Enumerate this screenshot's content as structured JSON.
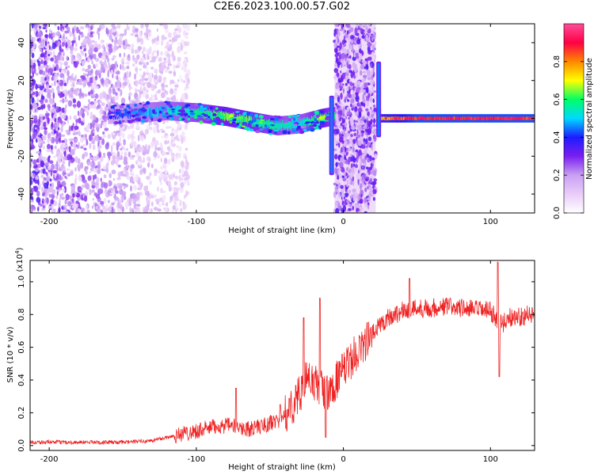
{
  "title": "C2E6.2023.100.00.57.G02",
  "chart_data": [
    {
      "type": "heatmap",
      "xlabel": "Height of straight line (km)",
      "ylabel": "Frequency (Hz)",
      "xlim": [
        -213,
        130
      ],
      "ylim": [
        -50,
        50
      ],
      "x_ticks": [
        -200,
        -100,
        0,
        100
      ],
      "y_ticks": [
        -40,
        -20,
        0,
        20,
        40
      ],
      "grid": false,
      "colorbar": {
        "label": "Normalized spectral amplitude",
        "range": [
          0,
          1
        ],
        "ticks": [
          0.0,
          0.2,
          0.4,
          0.6,
          0.8
        ],
        "colors": [
          "#ffffff",
          "#e9ccf9",
          "#c9a0f2",
          "#7a1ff0",
          "#1c1cff",
          "#00d9ff",
          "#00ff66",
          "#ffff00",
          "#ff8800",
          "#ff0044",
          "#ff4d99"
        ]
      },
      "noise_region_left": {
        "x": [
          -213,
          -115
        ],
        "amplitude": 0.35
      },
      "noise_band_center": {
        "x": [
          -6,
          22
        ],
        "amplitude": 0.3
      },
      "ridge": {
        "x": [
          -160,
          -140,
          -120,
          -100,
          -80,
          -60,
          -45,
          -30,
          -15,
          -8,
          25,
          50,
          80,
          100,
          130
        ],
        "frequency_hz": [
          2,
          3,
          4,
          3,
          1,
          -2,
          -4,
          -3,
          0,
          1,
          0,
          0,
          0,
          0,
          0
        ],
        "amplitude": [
          0.4,
          0.5,
          0.55,
          0.6,
          0.7,
          0.65,
          0.6,
          0.55,
          0.7,
          0.6,
          0.8,
          0.95,
          0.95,
          0.95,
          0.95
        ]
      },
      "vertical_features": [
        {
          "x": -8,
          "freq_range": [
            -30,
            12
          ]
        },
        {
          "x": 24,
          "freq_range": [
            -10,
            30
          ]
        }
      ]
    },
    {
      "type": "line",
      "xlabel": "Height of straight line (km)",
      "ylabel": "SNR (10 * v/v)",
      "y_multiplier": "(x10",
      "y_multiplier_exp": "4",
      "y_multiplier_close": ")",
      "xlim": [
        -213,
        130
      ],
      "ylim": [
        -0.03,
        1.13
      ],
      "x_ticks": [
        -200,
        -100,
        0,
        100
      ],
      "y_ticks": [
        0.0,
        0.2,
        0.4,
        0.6,
        0.8,
        1.0
      ],
      "grid": false,
      "series": [
        {
          "color": "#ee2222",
          "x": [
            -213,
            -180,
            -150,
            -130,
            -115,
            -105,
            -95,
            -85,
            -75,
            -65,
            -55,
            -45,
            -38,
            -32,
            -28,
            -24,
            -20,
            -14,
            -10,
            -5,
            0,
            5,
            10,
            15,
            20,
            25,
            30,
            40,
            50,
            60,
            70,
            80,
            90,
            100,
            104,
            108,
            112,
            120,
            130
          ],
          "y": [
            0.02,
            0.02,
            0.02,
            0.03,
            0.06,
            0.08,
            0.1,
            0.12,
            0.12,
            0.1,
            0.12,
            0.15,
            0.2,
            0.28,
            0.35,
            0.42,
            0.38,
            0.35,
            0.3,
            0.4,
            0.45,
            0.52,
            0.58,
            0.63,
            0.68,
            0.74,
            0.78,
            0.82,
            0.84,
            0.84,
            0.85,
            0.84,
            0.83,
            0.82,
            0.78,
            0.74,
            0.78,
            0.79,
            0.8
          ]
        }
      ],
      "spikes": [
        {
          "x": -73,
          "y": 0.35
        },
        {
          "x": -43,
          "y": 0.25
        },
        {
          "x": -27,
          "y": 0.78
        },
        {
          "x": -16,
          "y": 0.9
        },
        {
          "x": -12,
          "y": 0.05
        },
        {
          "x": 45,
          "y": 1.02
        },
        {
          "x": 105,
          "y": 1.12
        },
        {
          "x": 106,
          "y": 0.42
        }
      ]
    }
  ]
}
